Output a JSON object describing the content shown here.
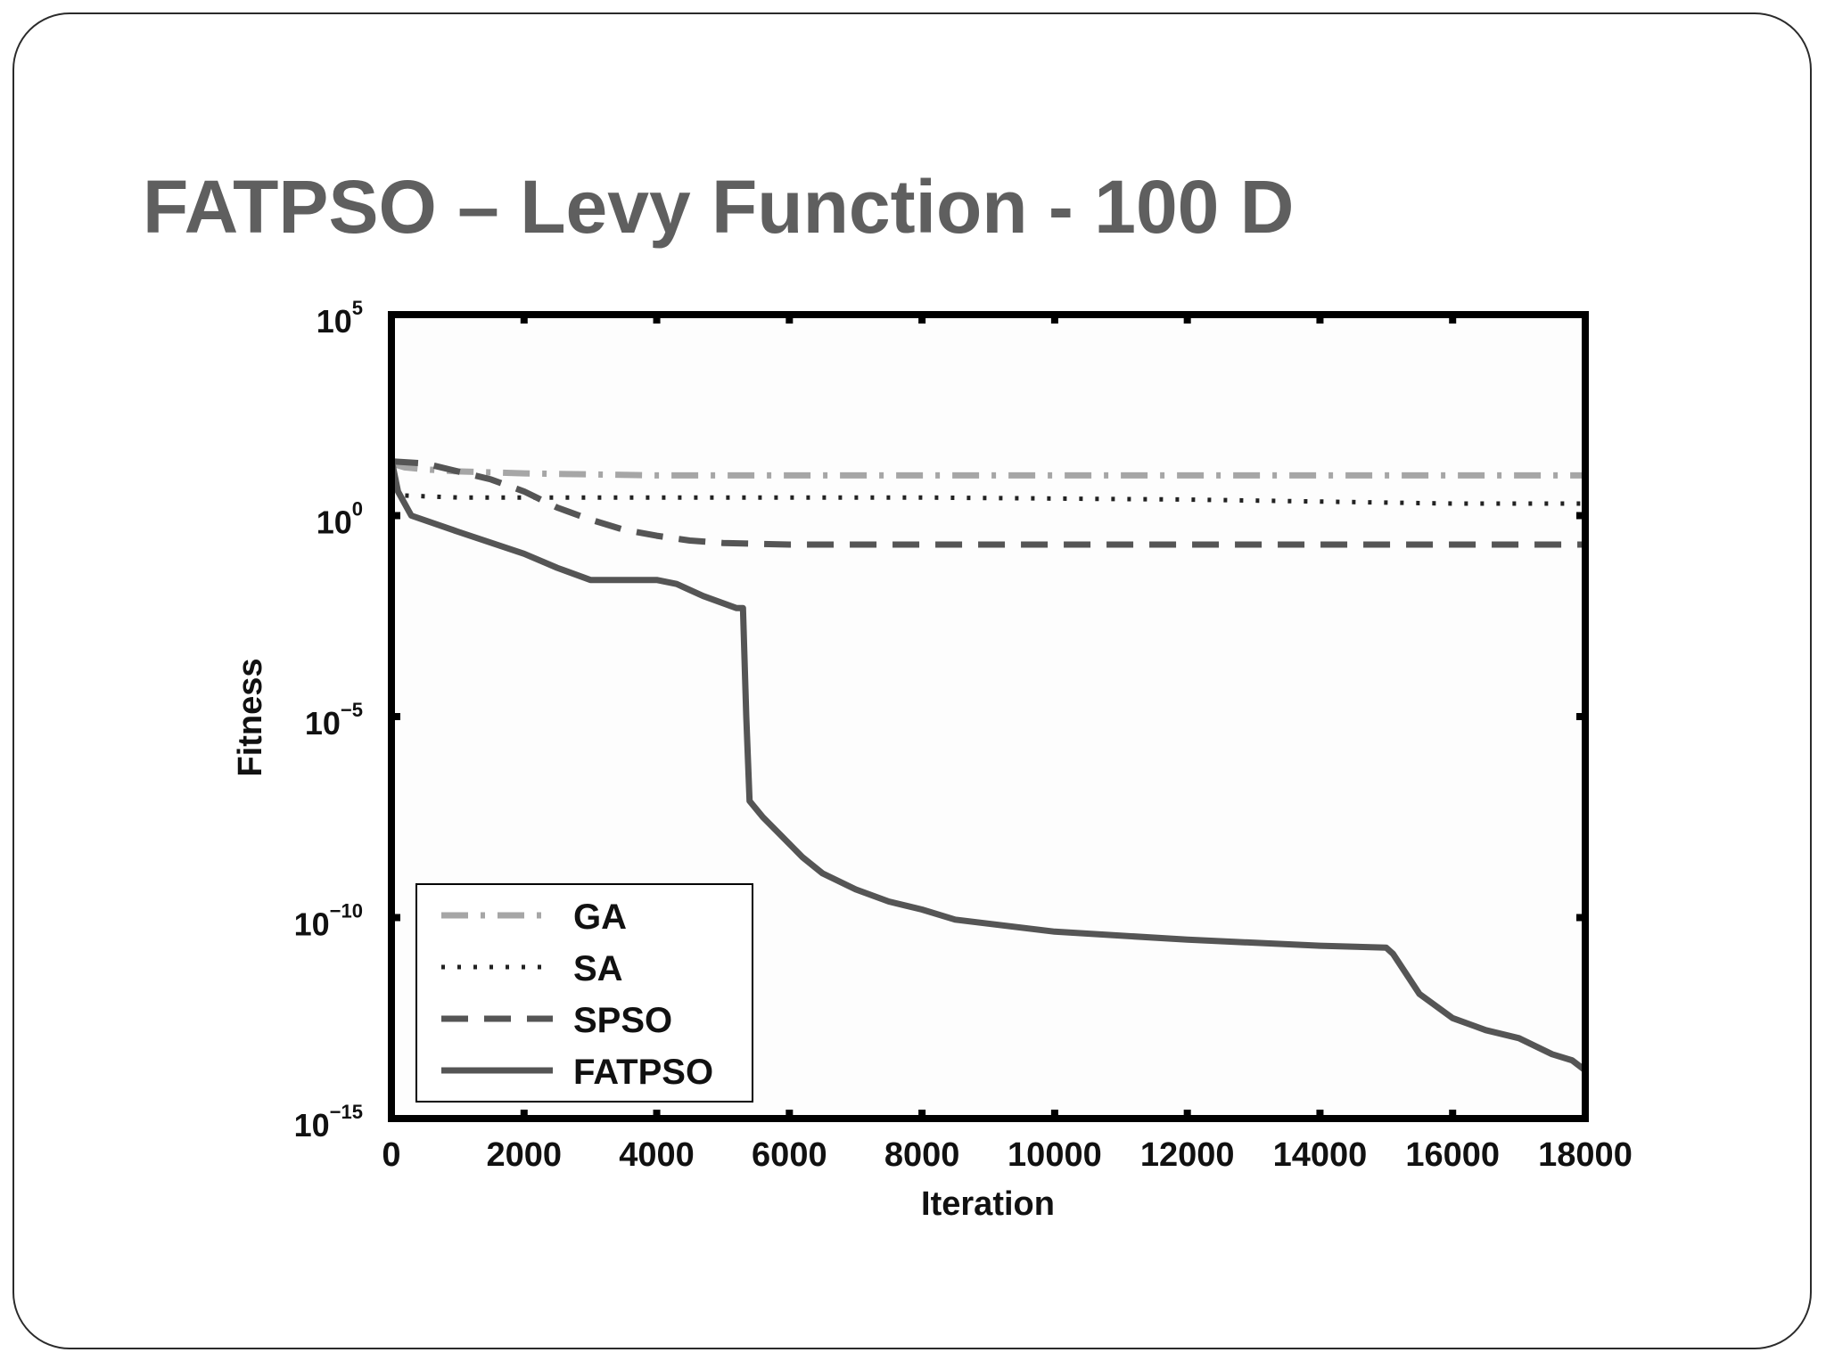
{
  "slide": {
    "title": "FATPSO – Levy Function - 100 D"
  },
  "colors": {
    "title": "#5f5f5f",
    "frame": "#2b2b2b",
    "ga": "#a6a6a6",
    "sa": "#222222",
    "spso": "#555555",
    "fatpso": "#555555"
  },
  "chart_data": {
    "type": "line",
    "title": "",
    "xlabel": "Iteration",
    "ylabel": "Fitness",
    "xlim": [
      0,
      18000
    ],
    "ylim_log10": [
      -15,
      5
    ],
    "y_scale": "log",
    "x_ticks": [
      0,
      2000,
      4000,
      6000,
      8000,
      10000,
      12000,
      14000,
      16000,
      18000
    ],
    "y_ticks": [
      {
        "base": "10",
        "exp": "5",
        "log10": 5
      },
      {
        "base": "10",
        "exp": "0",
        "log10": 0
      },
      {
        "base": "10",
        "exp": "−5",
        "log10": -5
      },
      {
        "base": "10",
        "exp": "−10",
        "log10": -10
      },
      {
        "base": "10",
        "exp": "−15",
        "log10": -15
      }
    ],
    "grid": false,
    "legend_position": "bottom-left",
    "series": [
      {
        "name": "GA",
        "style": "dashdot",
        "color": "#a6a6a6",
        "x": [
          0,
          200,
          500,
          1000,
          2000,
          4000,
          8000,
          12000,
          16000,
          18000
        ],
        "log10_y": [
          1.3,
          1.2,
          1.15,
          1.1,
          1.05,
          1.0,
          1.0,
          1.0,
          1.0,
          1.0
        ]
      },
      {
        "name": "SA",
        "style": "dotted",
        "color": "#222222",
        "x": [
          0,
          200,
          1000,
          4000,
          8000,
          12000,
          16000,
          18000
        ],
        "log10_y": [
          0.7,
          0.5,
          0.45,
          0.45,
          0.45,
          0.4,
          0.3,
          0.3
        ]
      },
      {
        "name": "SPSO",
        "style": "dashed",
        "color": "#555555",
        "x": [
          0,
          500,
          1000,
          1500,
          2000,
          2500,
          3000,
          3500,
          4000,
          4500,
          5000,
          6000,
          8000,
          12000,
          16000,
          18000
        ],
        "log10_y": [
          1.35,
          1.3,
          1.1,
          0.9,
          0.6,
          0.2,
          -0.1,
          -0.35,
          -0.5,
          -0.62,
          -0.68,
          -0.72,
          -0.72,
          -0.72,
          -0.72,
          -0.72
        ]
      },
      {
        "name": "FATPSO",
        "style": "solid",
        "color": "#555555",
        "x": [
          0,
          100,
          300,
          1000,
          2000,
          2500,
          3000,
          3500,
          4000,
          4300,
          4700,
          5200,
          5300,
          5350,
          5400,
          5600,
          5900,
          6200,
          6500,
          7000,
          7500,
          8000,
          8500,
          10000,
          12000,
          14000,
          15000,
          15100,
          15500,
          16000,
          16500,
          17000,
          17500,
          17800,
          18000
        ],
        "log10_y": [
          1.4,
          0.6,
          0.0,
          -0.4,
          -0.95,
          -1.3,
          -1.6,
          -1.6,
          -1.6,
          -1.7,
          -2.0,
          -2.3,
          -2.3,
          -5.0,
          -7.1,
          -7.5,
          -8.0,
          -8.5,
          -8.9,
          -9.3,
          -9.6,
          -9.8,
          -10.05,
          -10.35,
          -10.55,
          -10.7,
          -10.75,
          -10.9,
          -11.9,
          -12.5,
          -12.8,
          -13.0,
          -13.4,
          -13.55,
          -13.8
        ]
      }
    ]
  }
}
